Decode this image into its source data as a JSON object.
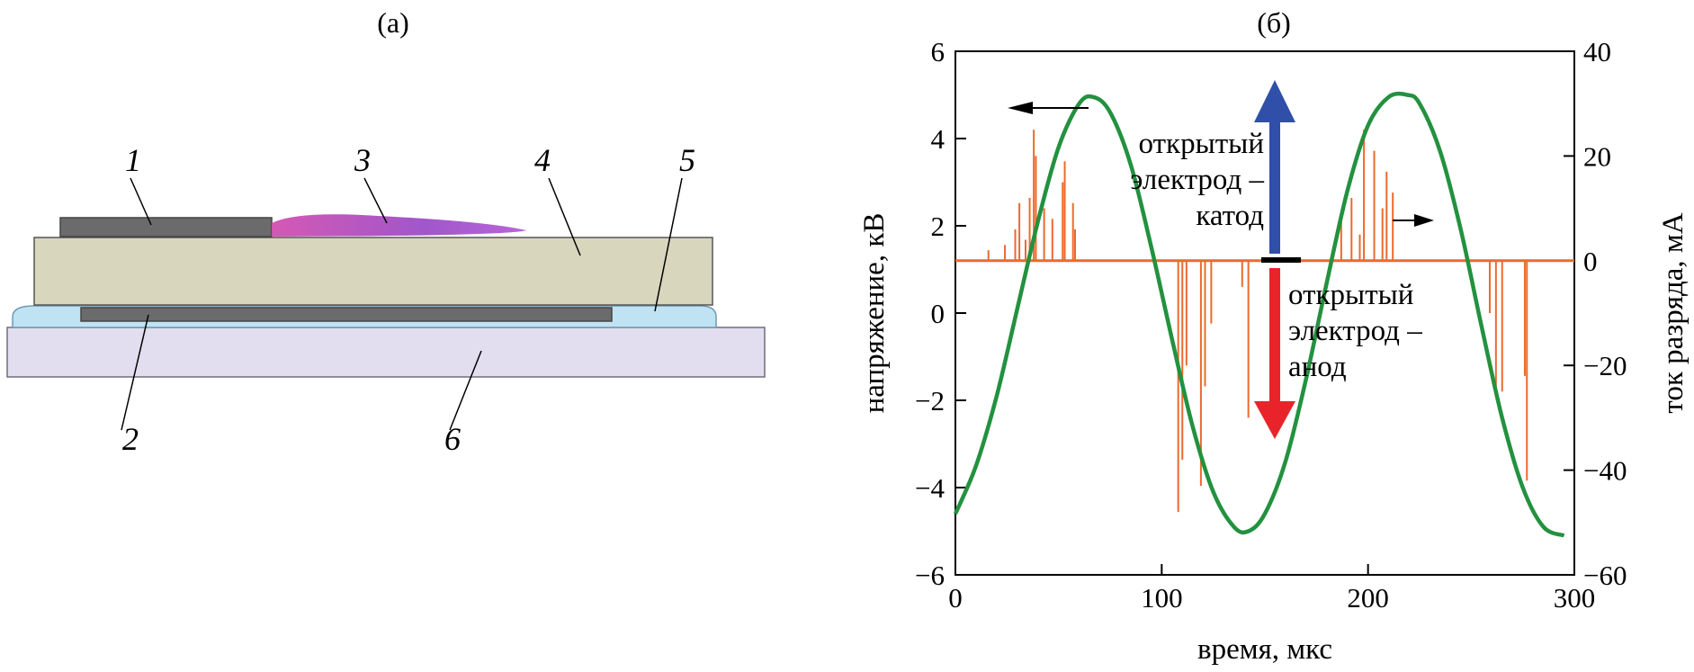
{
  "panel_a": {
    "label": "(а)",
    "parts": [
      {
        "id": "electrode-top",
        "label": "1",
        "color": "#6b6b6b"
      },
      {
        "id": "electrode-bottom",
        "label": "2",
        "color": "#6b6b6b"
      },
      {
        "id": "plasma",
        "label": "3",
        "color": "#a148c8"
      },
      {
        "id": "dielectric",
        "label": "4",
        "color": "#d8d6bd"
      },
      {
        "id": "encapsulant",
        "label": "5",
        "color": "#bfe3f3"
      },
      {
        "id": "substrate",
        "label": "6",
        "color": "#e2def0"
      }
    ]
  },
  "panel_b": {
    "label": "(б)",
    "annotations": {
      "cathode": [
        "открытый",
        "электрод –",
        "катод"
      ],
      "anode": [
        "открытый",
        "электрод –",
        "анод"
      ]
    },
    "colors": {
      "voltage": "#23913f",
      "current": "#ec6a2c",
      "arrow_up": "#2f4fa8",
      "arrow_down": "#e8242a"
    }
  },
  "chart_data": {
    "type": "line",
    "xlabel": "время, мкс",
    "ylabel": "напряжение, кВ",
    "y2label": "ток разряда, мА",
    "xlim": [
      0,
      300
    ],
    "ylim": [
      -6,
      6
    ],
    "y2lim": [
      -60,
      40
    ],
    "xticks": [
      0,
      100,
      200,
      300
    ],
    "yticks": [
      -6,
      -4,
      -2,
      0,
      2,
      4,
      6
    ],
    "y2ticks": [
      -60,
      -40,
      -20,
      0,
      20,
      40
    ],
    "grid": false,
    "series": [
      {
        "name": "voltage",
        "axis": "left",
        "x": [
          0,
          10,
          20,
          30,
          40,
          50,
          60,
          67,
          75,
          85,
          95,
          105,
          115,
          125,
          135,
          142,
          150,
          160,
          170,
          180,
          190,
          200,
          210,
          219,
          225,
          235,
          245,
          255,
          265,
          275,
          285,
          295
        ],
        "values": [
          -4.6,
          -3.5,
          -1.9,
          0.1,
          2.1,
          3.8,
          4.8,
          4.95,
          4.6,
          3.4,
          1.5,
          -0.6,
          -2.6,
          -4.1,
          -4.9,
          -5.0,
          -4.6,
          -3.4,
          -1.5,
          0.7,
          2.8,
          4.3,
          4.95,
          5.0,
          4.8,
          3.7,
          1.9,
          -0.3,
          -2.4,
          -4.0,
          -4.9,
          -5.1
        ]
      },
      {
        "name": "current",
        "axis": "right",
        "baseline": 0,
        "pulses_x": [
          16,
          24,
          29,
          31,
          34,
          36,
          38,
          39,
          43,
          47,
          52,
          53,
          57,
          58,
          108,
          110,
          112,
          119,
          121,
          124,
          139,
          142,
          187,
          192,
          196,
          198,
          203,
          207,
          209,
          212,
          259,
          262,
          265,
          276,
          277
        ],
        "pulses_y": [
          2,
          3,
          6,
          11,
          4,
          12,
          25,
          20,
          10,
          8,
          15,
          19,
          11,
          6,
          -48,
          -38,
          -20,
          -43,
          -24,
          -12,
          -5,
          -30,
          9,
          12,
          5,
          25,
          21,
          10,
          17,
          13,
          -10,
          -25,
          -25,
          -22,
          -42
        ]
      }
    ]
  }
}
